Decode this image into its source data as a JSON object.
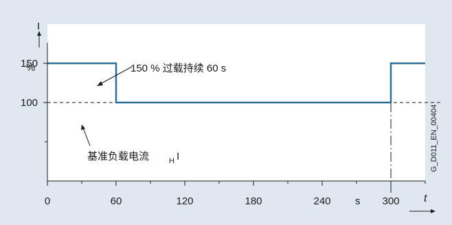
{
  "chart_data": {
    "type": "line",
    "title": "",
    "xlabel": "t",
    "x_unit": "s",
    "ylabel": "I",
    "y_unit": "%",
    "x_ticks": [
      0,
      60,
      120,
      180,
      240,
      300
    ],
    "y_ticks": [
      100,
      150
    ],
    "xlim": [
      0,
      330
    ],
    "ylim": [
      0,
      200
    ],
    "series": [
      {
        "color": "#2e6e94",
        "points": [
          [
            0,
            150
          ],
          [
            60,
            150
          ],
          [
            60,
            100
          ],
          [
            300,
            100
          ],
          [
            300,
            150
          ],
          [
            330,
            150
          ]
        ]
      }
    ],
    "reference_line": {
      "y": 100,
      "style": "dashed"
    },
    "marker_line": {
      "x": 300,
      "style": "dash-dot"
    },
    "annotations": {
      "overload": "150 % 过载持续 60 s",
      "base_load": "基准负载电流",
      "base_load_subscript": "H",
      "base_load_symbol": "I"
    },
    "side_label": "G_D011_EN_00404"
  }
}
